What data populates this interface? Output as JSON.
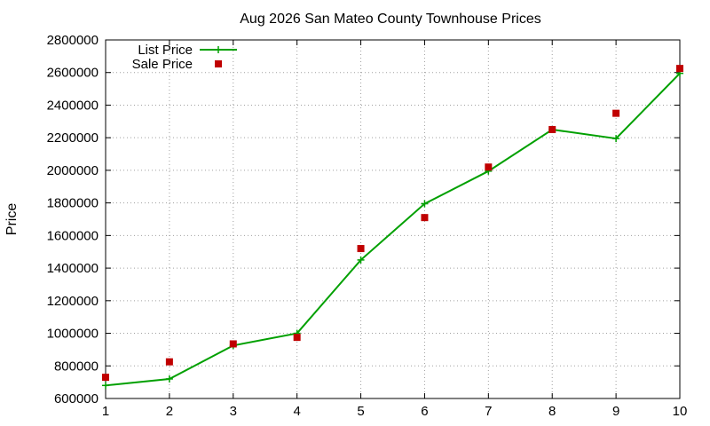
{
  "chart_data": {
    "type": "line",
    "title": "Aug 2026 San Mateo County Townhouse Prices",
    "xlabel": "",
    "ylabel": "Price",
    "xlim": [
      1,
      10
    ],
    "ylim": [
      600000,
      2800000
    ],
    "x_ticks": [
      1,
      2,
      3,
      4,
      5,
      6,
      7,
      8,
      9,
      10
    ],
    "y_ticks": [
      600000,
      800000,
      1000000,
      1200000,
      1400000,
      1600000,
      1800000,
      2000000,
      2200000,
      2400000,
      2600000,
      2800000
    ],
    "grid": true,
    "legend_position": "top-left",
    "x": [
      1,
      2,
      3,
      4,
      5,
      6,
      7,
      8,
      9,
      10
    ],
    "series": [
      {
        "name": "List Price",
        "style": "line-with-plus-markers",
        "color": "#00a000",
        "values": [
          680000,
          720000,
          925000,
          1000000,
          1450000,
          1795000,
          1995000,
          2250000,
          2195000,
          2595000
        ]
      },
      {
        "name": "Sale Price",
        "style": "square-markers",
        "color": "#c00000",
        "values": [
          730000,
          825000,
          935000,
          975000,
          1520000,
          1710000,
          2020000,
          2250000,
          2350000,
          2625000
        ]
      }
    ]
  }
}
